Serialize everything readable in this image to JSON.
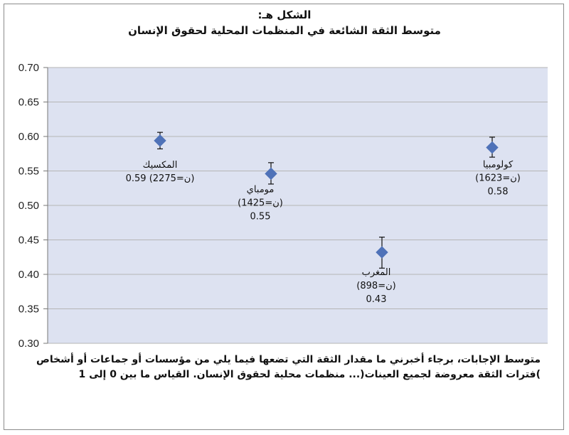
{
  "chart_data": {
    "type": "scatter",
    "title": "الشكل هـ:",
    "subtitle": "متوسط الثقة الشائعة في المنظمات المحلية لحقوق الإنسان",
    "note_lines": [
      "متوسط الإجابات، برجاء أخبرني ما مقدار الثقة التي تضعها فيما يلي من مؤسسات أو جماعات أو أشخاص",
      ")فترات الثقة معروضة لجميع العينات(... منظمات محلية لحقوق الإنسان. القياس ما بين 0 إلى 1"
    ],
    "ylim": [
      0.3,
      0.7
    ],
    "yticks": [
      "0.30",
      "0.35",
      "0.40",
      "0.45",
      "0.50",
      "0.55",
      "0.60",
      "0.65",
      "0.70"
    ],
    "grid": true,
    "colors": {
      "marker": "#4f72b8",
      "plot_bg": "#dde2f1",
      "grid": "#b5b5b5"
    },
    "points": [
      {
        "name": "المكسيك",
        "value": 0.594,
        "low": 0.582,
        "high": 0.606,
        "label_lines": [
          "المكسيك",
          "(ن=2275) 0.59"
        ]
      },
      {
        "name": "مومباي",
        "value": 0.546,
        "low": 0.531,
        "high": 0.562,
        "label_lines": [
          "مومباي",
          "(ن=1425)",
          "0.55"
        ]
      },
      {
        "name": "المغرب",
        "value": 0.432,
        "low": 0.409,
        "high": 0.454,
        "label_lines": [
          "المغرب",
          "(ن=898)",
          "0.43"
        ]
      },
      {
        "name": "كولومبيا",
        "value": 0.584,
        "low": 0.57,
        "high": 0.599,
        "label_lines": [
          "كولومبيا",
          "(ن=1623)",
          "0.58"
        ]
      }
    ]
  }
}
